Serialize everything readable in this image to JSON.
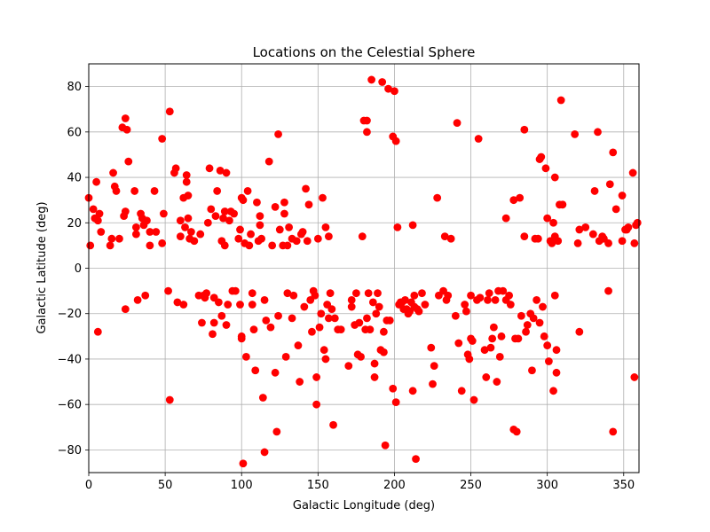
{
  "chart_data": {
    "type": "scatter",
    "title": "Locations on the Celestial Sphere",
    "xlabel": "Galactic Longitude (deg)",
    "ylabel": "Galactic Latitude (deg)",
    "xlim": [
      0,
      360
    ],
    "ylim": [
      -90,
      90
    ],
    "xticks": [
      0,
      50,
      100,
      150,
      200,
      250,
      300,
      350
    ],
    "yticks": [
      -80,
      -60,
      -40,
      -20,
      0,
      20,
      40,
      60,
      80
    ],
    "grid": true,
    "marker_color": "#ff0000",
    "points": [
      [
        0,
        31
      ],
      [
        1,
        10
      ],
      [
        3,
        26
      ],
      [
        4,
        22
      ],
      [
        5,
        38
      ],
      [
        6,
        21
      ],
      [
        7,
        24
      ],
      [
        8,
        16
      ],
      [
        6,
        -28
      ],
      [
        14,
        10
      ],
      [
        15,
        13
      ],
      [
        16,
        42
      ],
      [
        17,
        36
      ],
      [
        18,
        34
      ],
      [
        20,
        13
      ],
      [
        22,
        62
      ],
      [
        23,
        23
      ],
      [
        24,
        66
      ],
      [
        25,
        61
      ],
      [
        26,
        47
      ],
      [
        24,
        25
      ],
      [
        24,
        -18
      ],
      [
        30,
        34
      ],
      [
        31,
        18
      ],
      [
        31,
        15
      ],
      [
        32,
        -14
      ],
      [
        34,
        24
      ],
      [
        35,
        22
      ],
      [
        36,
        19
      ],
      [
        37,
        -12
      ],
      [
        38,
        21
      ],
      [
        40,
        16
      ],
      [
        40,
        10
      ],
      [
        43,
        34
      ],
      [
        44,
        16
      ],
      [
        48,
        57
      ],
      [
        49,
        24
      ],
      [
        48,
        11
      ],
      [
        53,
        69
      ],
      [
        52,
        -10
      ],
      [
        53,
        -58
      ],
      [
        56,
        42
      ],
      [
        57,
        44
      ],
      [
        58,
        -15
      ],
      [
        60,
        21
      ],
      [
        60,
        14
      ],
      [
        62,
        -16
      ],
      [
        62,
        31
      ],
      [
        63,
        18
      ],
      [
        64,
        41
      ],
      [
        64,
        38
      ],
      [
        65,
        22
      ],
      [
        65,
        32
      ],
      [
        66,
        13
      ],
      [
        67,
        16
      ],
      [
        69,
        12
      ],
      [
        72,
        -12
      ],
      [
        73,
        15
      ],
      [
        74,
        -24
      ],
      [
        75,
        -12
      ],
      [
        76,
        -13
      ],
      [
        77,
        -11
      ],
      [
        78,
        20
      ],
      [
        79,
        44
      ],
      [
        80,
        26
      ],
      [
        81,
        -29
      ],
      [
        82,
        -24
      ],
      [
        82,
        -13
      ],
      [
        83,
        23
      ],
      [
        84,
        34
      ],
      [
        85,
        -15
      ],
      [
        86,
        43
      ],
      [
        87,
        12
      ],
      [
        87,
        -21
      ],
      [
        88,
        22
      ],
      [
        89,
        25
      ],
      [
        89,
        10
      ],
      [
        90,
        42
      ],
      [
        90,
        -25
      ],
      [
        91,
        -16
      ],
      [
        92,
        21
      ],
      [
        93,
        25
      ],
      [
        94,
        -10
      ],
      [
        95,
        24
      ],
      [
        96,
        -10
      ],
      [
        98,
        13
      ],
      [
        99,
        -16
      ],
      [
        99,
        17
      ],
      [
        100,
        -30
      ],
      [
        100,
        -31
      ],
      [
        100,
        31
      ],
      [
        101,
        30
      ],
      [
        101,
        -86
      ],
      [
        102,
        11
      ],
      [
        103,
        -39
      ],
      [
        104,
        34
      ],
      [
        105,
        10
      ],
      [
        106,
        15
      ],
      [
        107,
        -11
      ],
      [
        107,
        -16
      ],
      [
        108,
        -27
      ],
      [
        109,
        -45
      ],
      [
        110,
        29
      ],
      [
        111,
        12
      ],
      [
        112,
        19
      ],
      [
        112,
        23
      ],
      [
        113,
        13
      ],
      [
        114,
        -57
      ],
      [
        115,
        -81
      ],
      [
        115,
        -14
      ],
      [
        116,
        -23
      ],
      [
        118,
        47
      ],
      [
        119,
        -26
      ],
      [
        120,
        10
      ],
      [
        122,
        27
      ],
      [
        122,
        -46
      ],
      [
        123,
        -72
      ],
      [
        124,
        59
      ],
      [
        124,
        -21
      ],
      [
        125,
        17
      ],
      [
        127,
        10
      ],
      [
        128,
        29
      ],
      [
        128,
        24
      ],
      [
        129,
        -39
      ],
      [
        130,
        10
      ],
      [
        130,
        -11
      ],
      [
        131,
        18
      ],
      [
        133,
        13
      ],
      [
        133,
        -22
      ],
      [
        134,
        -12
      ],
      [
        136,
        12
      ],
      [
        137,
        -34
      ],
      [
        138,
        -50
      ],
      [
        139,
        15
      ],
      [
        140,
        16
      ],
      [
        141,
        -17
      ],
      [
        142,
        35
      ],
      [
        143,
        12
      ],
      [
        144,
        28
      ],
      [
        145,
        -14
      ],
      [
        146,
        -28
      ],
      [
        147,
        -10
      ],
      [
        148,
        -12
      ],
      [
        149,
        -48
      ],
      [
        149,
        -60
      ],
      [
        150,
        13
      ],
      [
        151,
        -26
      ],
      [
        152,
        -20
      ],
      [
        153,
        31
      ],
      [
        154,
        -36
      ],
      [
        155,
        18
      ],
      [
        155,
        -40
      ],
      [
        156,
        -16
      ],
      [
        157,
        14
      ],
      [
        157,
        -22
      ],
      [
        158,
        -11
      ],
      [
        159,
        -18
      ],
      [
        160,
        -69
      ],
      [
        161,
        -22
      ],
      [
        163,
        -27
      ],
      [
        165,
        -27
      ],
      [
        170,
        -43
      ],
      [
        172,
        -14
      ],
      [
        172,
        -17
      ],
      [
        174,
        -25
      ],
      [
        175,
        -11
      ],
      [
        176,
        -38
      ],
      [
        177,
        -24
      ],
      [
        178,
        -39
      ],
      [
        179,
        14
      ],
      [
        180,
        65
      ],
      [
        181,
        -27
      ],
      [
        182,
        65
      ],
      [
        182,
        60
      ],
      [
        182,
        -22
      ],
      [
        183,
        -11
      ],
      [
        184,
        -27
      ],
      [
        185,
        83
      ],
      [
        186,
        -15
      ],
      [
        187,
        -42
      ],
      [
        187,
        -48
      ],
      [
        188,
        -20
      ],
      [
        189,
        -11
      ],
      [
        190,
        -17
      ],
      [
        191,
        -36
      ],
      [
        192,
        82
      ],
      [
        193,
        -28
      ],
      [
        193,
        -37
      ],
      [
        194,
        -78
      ],
      [
        195,
        -23
      ],
      [
        196,
        79
      ],
      [
        197,
        -23
      ],
      [
        199,
        58
      ],
      [
        199,
        -53
      ],
      [
        200,
        78
      ],
      [
        201,
        -59
      ],
      [
        201,
        56
      ],
      [
        202,
        18
      ],
      [
        203,
        -16
      ],
      [
        204,
        -15
      ],
      [
        205,
        -15
      ],
      [
        206,
        -18
      ],
      [
        207,
        -14
      ],
      [
        208,
        -18
      ],
      [
        209,
        -20
      ],
      [
        210,
        -19
      ],
      [
        211,
        -15
      ],
      [
        212,
        -54
      ],
      [
        212,
        19
      ],
      [
        213,
        -12
      ],
      [
        213,
        -17
      ],
      [
        214,
        -84
      ],
      [
        215,
        -18
      ],
      [
        216,
        -19
      ],
      [
        218,
        -11
      ],
      [
        220,
        -16
      ],
      [
        224,
        -35
      ],
      [
        225,
        -51
      ],
      [
        226,
        -43
      ],
      [
        228,
        31
      ],
      [
        229,
        -12
      ],
      [
        232,
        -10
      ],
      [
        233,
        14
      ],
      [
        234,
        -14
      ],
      [
        235,
        -12
      ],
      [
        237,
        13
      ],
      [
        240,
        -21
      ],
      [
        241,
        64
      ],
      [
        242,
        -33
      ],
      [
        244,
        -54
      ],
      [
        246,
        -16
      ],
      [
        247,
        -19
      ],
      [
        248,
        -38
      ],
      [
        249,
        -40
      ],
      [
        250,
        -31
      ],
      [
        250,
        -12
      ],
      [
        251,
        -32
      ],
      [
        252,
        -58
      ],
      [
        254,
        -14
      ],
      [
        255,
        57
      ],
      [
        256,
        -13
      ],
      [
        259,
        -36
      ],
      [
        260,
        -48
      ],
      [
        261,
        -14
      ],
      [
        262,
        -11
      ],
      [
        263,
        -35
      ],
      [
        264,
        -31
      ],
      [
        265,
        -26
      ],
      [
        266,
        -14
      ],
      [
        267,
        -50
      ],
      [
        268,
        -10
      ],
      [
        269,
        -39
      ],
      [
        270,
        -30
      ],
      [
        271,
        -10
      ],
      [
        273,
        -14
      ],
      [
        273,
        22
      ],
      [
        275,
        -12
      ],
      [
        276,
        -16
      ],
      [
        278,
        -71
      ],
      [
        278,
        30
      ],
      [
        279,
        -31
      ],
      [
        280,
        -72
      ],
      [
        281,
        -31
      ],
      [
        282,
        31
      ],
      [
        283,
        -21
      ],
      [
        285,
        61
      ],
      [
        285,
        14
      ],
      [
        286,
        -28
      ],
      [
        287,
        -25
      ],
      [
        289,
        -20
      ],
      [
        290,
        -45
      ],
      [
        291,
        -22
      ],
      [
        292,
        13
      ],
      [
        293,
        -14
      ],
      [
        294,
        13
      ],
      [
        295,
        -24
      ],
      [
        295,
        48
      ],
      [
        296,
        49
      ],
      [
        297,
        -17
      ],
      [
        298,
        -30
      ],
      [
        299,
        44
      ],
      [
        300,
        22
      ],
      [
        300,
        -34
      ],
      [
        301,
        -41
      ],
      [
        302,
        12
      ],
      [
        303,
        11
      ],
      [
        304,
        20
      ],
      [
        304,
        -54
      ],
      [
        305,
        -12
      ],
      [
        305,
        14
      ],
      [
        305,
        40
      ],
      [
        306,
        -36
      ],
      [
        306,
        -46
      ],
      [
        307,
        12
      ],
      [
        308,
        28
      ],
      [
        309,
        74
      ],
      [
        310,
        28
      ],
      [
        318,
        59
      ],
      [
        320,
        11
      ],
      [
        321,
        17
      ],
      [
        321,
        -28
      ],
      [
        325,
        18
      ],
      [
        330,
        15
      ],
      [
        331,
        34
      ],
      [
        333,
        60
      ],
      [
        334,
        12
      ],
      [
        336,
        14
      ],
      [
        337,
        13
      ],
      [
        340,
        11
      ],
      [
        340,
        -10
      ],
      [
        341,
        37
      ],
      [
        343,
        51
      ],
      [
        343,
        -72
      ],
      [
        345,
        26
      ],
      [
        349,
        32
      ],
      [
        349,
        12
      ],
      [
        351,
        17
      ],
      [
        352,
        17
      ],
      [
        353,
        18
      ],
      [
        356,
        42
      ],
      [
        357,
        11
      ],
      [
        357,
        -48
      ],
      [
        358,
        19
      ],
      [
        359,
        20
      ]
    ]
  }
}
